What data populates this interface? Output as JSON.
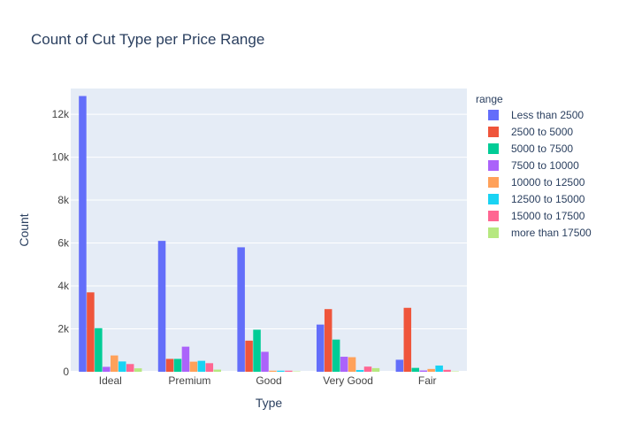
{
  "chart_data": {
    "type": "bar",
    "title": "Count of Cut Type per Price Range",
    "xlabel": "Type",
    "ylabel": "Count",
    "categories": [
      "Ideal",
      "Premium",
      "Good",
      "Very Good",
      "Fair"
    ],
    "ylim": [
      0,
      13200
    ],
    "y_ticks": [
      0,
      2000,
      4000,
      6000,
      8000,
      10000,
      12000
    ],
    "y_tick_labels": [
      "0",
      "2k",
      "4k",
      "6k",
      "8k",
      "10k",
      "12k"
    ],
    "grid": true,
    "legend": {
      "title": "range",
      "placement": "right"
    },
    "series": [
      {
        "name": "Less than 2500",
        "color": "#636efa",
        "values": [
          12850,
          6100,
          5800,
          2200,
          560
        ]
      },
      {
        "name": "2500 to 5000",
        "color": "#EF553B",
        "values": [
          3700,
          600,
          1450,
          2920,
          2980
        ]
      },
      {
        "name": "5000 to 7500",
        "color": "#00cc96",
        "values": [
          2030,
          600,
          1960,
          1500,
          180
        ]
      },
      {
        "name": "7500 to 10000",
        "color": "#ab63fa",
        "values": [
          230,
          1170,
          930,
          700,
          60
        ]
      },
      {
        "name": "10000 to 12500",
        "color": "#FFA15A",
        "values": [
          760,
          470,
          50,
          680,
          130
        ]
      },
      {
        "name": "12500 to 15000",
        "color": "#19d3f3",
        "values": [
          480,
          510,
          50,
          80,
          290
        ]
      },
      {
        "name": "15000 to 17500",
        "color": "#FF6692",
        "values": [
          360,
          400,
          50,
          240,
          90
        ]
      },
      {
        "name": "more than 17500",
        "color": "#B6E880",
        "values": [
          160,
          100,
          20,
          170,
          20
        ]
      }
    ]
  },
  "colors": {
    "plot_background": "#e5ecf6",
    "grid": "#ffffff",
    "text": "#2a3f5f",
    "tick_text": "#444444"
  }
}
